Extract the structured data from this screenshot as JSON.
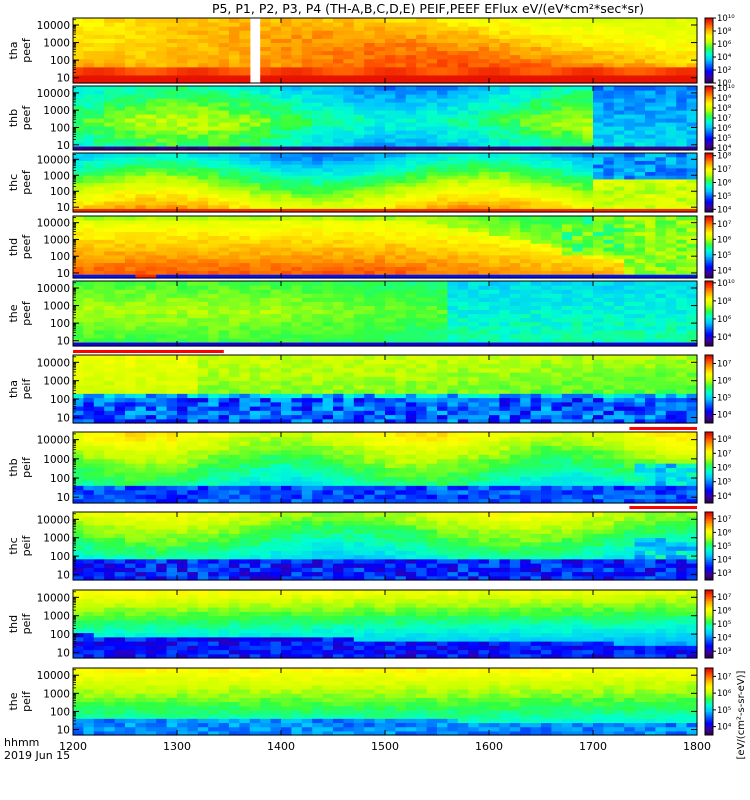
{
  "chart_data": {
    "type": "heatmap",
    "title": "P5, P1, P2, P3, P4 (TH-A,B,C,D,E) PEIF,PEEF EFlux eV/(eV*cm²*sec*sr)",
    "x_ticks": [
      "1200",
      "1300",
      "1400",
      "1500",
      "1600",
      "1700",
      "1800"
    ],
    "x_range": [
      1200,
      1800
    ],
    "x_units": "hhmm",
    "date_label": "2019 Jun 15",
    "y_scale": "log",
    "y_ticks": [
      "10",
      "100",
      "1000",
      "10000"
    ],
    "y_range": [
      5,
      25000
    ],
    "colorbar_units": "[eV/(cm²-s-sr-eV)]",
    "panels": [
      {
        "probe": "tha",
        "species": "peef",
        "levels": [
          "10⁰",
          "10²",
          "10⁴",
          "10⁶",
          "10⁸",
          "10¹⁰"
        ],
        "zrange": [
          0,
          10
        ],
        "pattern": "e_a"
      },
      {
        "probe": "thb",
        "species": "peef",
        "levels": [
          "10⁴",
          "10⁵",
          "10⁶",
          "10⁷",
          "10⁸",
          "10⁹",
          "10¹⁰"
        ],
        "zrange": [
          3.8,
          10.2
        ],
        "pattern": "e_b"
      },
      {
        "probe": "thc",
        "species": "peef",
        "levels": [
          "10⁴",
          "10⁵",
          "10⁶",
          "10⁷",
          "10⁸"
        ],
        "zrange": [
          3.8,
          8.2
        ],
        "pattern": "e_c"
      },
      {
        "probe": "thd",
        "species": "peef",
        "levels": [
          "10⁴",
          "10⁵",
          "10⁶",
          "10⁷"
        ],
        "zrange": [
          3.5,
          7.5
        ],
        "pattern": "e_d"
      },
      {
        "probe": "the",
        "species": "peef",
        "levels": [
          "10⁴",
          "10⁶",
          "10⁸",
          "10¹⁰"
        ],
        "zrange": [
          3,
          10.2
        ],
        "pattern": "e_e"
      },
      {
        "probe": "tha",
        "species": "peif",
        "levels": [
          "10⁴",
          "10⁵",
          "10⁶",
          "10⁷"
        ],
        "zrange": [
          3.5,
          7.5
        ],
        "pattern": "i_a"
      },
      {
        "probe": "thb",
        "species": "peif",
        "levels": [
          "10⁴",
          "10⁵",
          "10⁶",
          "10⁷",
          "10⁸"
        ],
        "zrange": [
          3.5,
          8.5
        ],
        "pattern": "i_b"
      },
      {
        "probe": "thc",
        "species": "peif",
        "levels": [
          "10³",
          "10⁴",
          "10⁵",
          "10⁶",
          "10⁷"
        ],
        "zrange": [
          2.5,
          7.5
        ],
        "pattern": "i_c"
      },
      {
        "probe": "thd",
        "species": "peif",
        "levels": [
          "10³",
          "10⁴",
          "10⁵",
          "10⁶",
          "10⁷"
        ],
        "zrange": [
          2.5,
          7.5
        ],
        "pattern": "i_d"
      },
      {
        "probe": "the",
        "species": "peif",
        "levels": [
          "10⁴",
          "10⁵",
          "10⁶",
          "10⁷"
        ],
        "zrange": [
          3.5,
          7.5
        ],
        "pattern": "i_e"
      }
    ],
    "colormap": [
      "#2a0040",
      "#3a00a0",
      "#0000ff",
      "#0060ff",
      "#00c8ff",
      "#00ffd0",
      "#30ff40",
      "#c8ff00",
      "#ffff00",
      "#ffb000",
      "#ff5000",
      "#e00000"
    ],
    "flag_bars": [
      {
        "color": "#ff0000",
        "x_start": 1200,
        "x_end": 1345,
        "row": "above-panel-6"
      },
      {
        "color": "#ff0000",
        "x_start": 1735,
        "x_end": 1800,
        "row": "above-panel-7"
      },
      {
        "color": "#ff0000",
        "x_start": 1735,
        "x_end": 1800,
        "row": "above-panel-8"
      }
    ],
    "grid": false,
    "legend": "none"
  }
}
